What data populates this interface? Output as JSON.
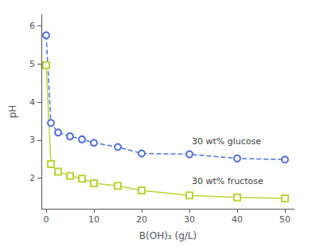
{
  "chart_data": {
    "type": "line",
    "xlabel": "B(OH)₃ (g/L)",
    "ylabel": "pH",
    "x": [
      0.0,
      1.0,
      2.5,
      5.0,
      7.5,
      10.0,
      15.0,
      20.0,
      30.0,
      40.0,
      50.0
    ],
    "series": [
      {
        "values": [
          5.75,
          3.45,
          3.2,
          3.1,
          3.02,
          2.93,
          2.82,
          2.65,
          2.63,
          2.52,
          2.49
        ],
        "marker": "circle",
        "line_style": "dashed"
      },
      {
        "values": [
          4.97,
          2.37,
          2.17,
          2.06,
          1.99,
          1.87,
          1.8,
          1.68,
          1.55,
          1.5,
          1.47
        ],
        "marker": "square",
        "line_style": "solid"
      }
    ],
    "annotations": [
      {
        "text": "30 wt% glucose",
        "x": 30.5,
        "y": 2.97
      },
      {
        "text": "30 wt% fructose",
        "x": 30.5,
        "y": 1.92
      }
    ],
    "xlim": [
      -1,
      52
    ],
    "ylim": [
      1.2,
      6.3
    ],
    "xticks": [
      0,
      10,
      20,
      30,
      40,
      50
    ],
    "yticks": [
      2,
      3,
      4,
      5,
      6
    ],
    "grid": false
  }
}
